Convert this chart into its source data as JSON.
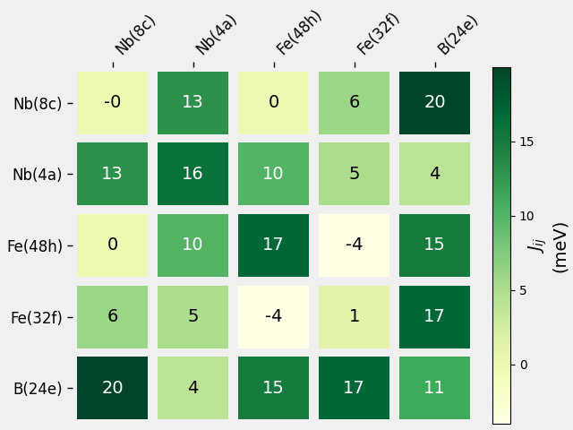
{
  "labels": [
    "Nb(8c)",
    "Nb(4a)",
    "Fe(48h)",
    "Fe(32f)",
    "B(24e)"
  ],
  "matrix": [
    [
      0,
      13,
      0,
      6,
      20
    ],
    [
      13,
      16,
      10,
      5,
      4
    ],
    [
      0,
      10,
      17,
      -4,
      15
    ],
    [
      6,
      5,
      -4,
      1,
      17
    ],
    [
      20,
      4,
      15,
      17,
      11
    ]
  ],
  "display_values": [
    [
      "-0",
      "13",
      "0",
      "6",
      "20"
    ],
    [
      "13",
      "16",
      "10",
      "5",
      "4"
    ],
    [
      "0",
      "10",
      "17",
      "-4",
      "15"
    ],
    [
      "6",
      "5",
      "-4",
      "1",
      "17"
    ],
    [
      "20",
      "4",
      "15",
      "17",
      "11"
    ]
  ],
  "cmap": "YlGn",
  "vmin": -4,
  "vmax": 20,
  "colorbar_label": "$J_{ij}$\n(meV)",
  "colorbar_ticks": [
    0,
    5,
    10,
    15
  ],
  "figsize": [
    6.4,
    4.8
  ],
  "dpi": 100,
  "dark_text_color": "white",
  "light_text_color": "black",
  "fontsize_cell": 14,
  "fontsize_labels": 12,
  "fontsize_colorbar": 14,
  "bg_color": "#f0f0f0"
}
